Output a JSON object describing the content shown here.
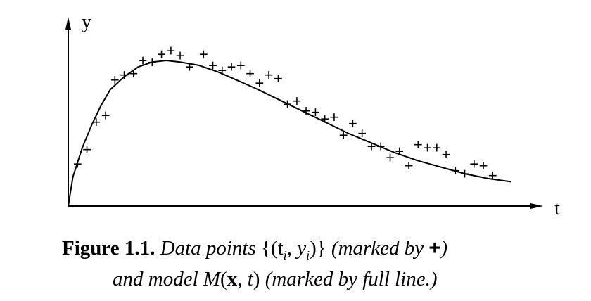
{
  "figure": {
    "y_axis_label": "y",
    "x_axis_label": "t",
    "marker_symbol": "+",
    "caption": {
      "label": "Figure 1.1.",
      "text_a": "Data points",
      "math_a": "{(t",
      "sub_i1": "i",
      "math_b": ", y",
      "sub_i2": "i",
      "math_c": ")}",
      "text_b": "(marked by",
      "plus": "+",
      "close_paren": ")",
      "text_c": "and model",
      "model_M": "M",
      "paren_open": "(",
      "model_x": "x",
      "comma_t": ", t",
      "paren_close": ")",
      "text_d": "(marked by full line.)"
    }
  },
  "chart_data": {
    "type": "scatter",
    "series": [
      {
        "values": [
          [
            0.02,
            0.26
          ],
          [
            0.04,
            0.35
          ],
          [
            0.06,
            0.52
          ],
          [
            0.08,
            0.56
          ],
          [
            0.1,
            0.78
          ],
          [
            0.12,
            0.81
          ],
          [
            0.14,
            0.82
          ],
          [
            0.16,
            0.9
          ],
          [
            0.18,
            0.89
          ],
          [
            0.2,
            0.94
          ],
          [
            0.22,
            0.96
          ],
          [
            0.24,
            0.93
          ],
          [
            0.26,
            0.86
          ],
          [
            0.29,
            0.94
          ],
          [
            0.31,
            0.87
          ],
          [
            0.33,
            0.84
          ],
          [
            0.35,
            0.86
          ],
          [
            0.37,
            0.87
          ],
          [
            0.39,
            0.82
          ],
          [
            0.41,
            0.76
          ],
          [
            0.43,
            0.81
          ],
          [
            0.45,
            0.79
          ],
          [
            0.47,
            0.63
          ],
          [
            0.49,
            0.65
          ],
          [
            0.51,
            0.59
          ],
          [
            0.53,
            0.58
          ],
          [
            0.55,
            0.54
          ],
          [
            0.57,
            0.55
          ],
          [
            0.59,
            0.44
          ],
          [
            0.61,
            0.51
          ],
          [
            0.63,
            0.45
          ],
          [
            0.65,
            0.37
          ],
          [
            0.67,
            0.37
          ],
          [
            0.69,
            0.3
          ],
          [
            0.71,
            0.34
          ],
          [
            0.73,
            0.25
          ],
          [
            0.75,
            0.38
          ],
          [
            0.77,
            0.36
          ],
          [
            0.79,
            0.36
          ],
          [
            0.81,
            0.32
          ],
          [
            0.83,
            0.22
          ],
          [
            0.85,
            0.2
          ],
          [
            0.87,
            0.26
          ],
          [
            0.89,
            0.25
          ],
          [
            0.91,
            0.19
          ]
        ]
      },
      {
        "values": [
          [
            0.0,
            0.0
          ],
          [
            0.01,
            0.18
          ],
          [
            0.03,
            0.36
          ],
          [
            0.05,
            0.5
          ],
          [
            0.07,
            0.62
          ],
          [
            0.09,
            0.72
          ],
          [
            0.12,
            0.8
          ],
          [
            0.15,
            0.86
          ],
          [
            0.18,
            0.89
          ],
          [
            0.21,
            0.9
          ],
          [
            0.24,
            0.89
          ],
          [
            0.28,
            0.87
          ],
          [
            0.32,
            0.83
          ],
          [
            0.36,
            0.78
          ],
          [
            0.4,
            0.73
          ],
          [
            0.45,
            0.66
          ],
          [
            0.5,
            0.59
          ],
          [
            0.55,
            0.52
          ],
          [
            0.6,
            0.45
          ],
          [
            0.65,
            0.39
          ],
          [
            0.7,
            0.33
          ],
          [
            0.75,
            0.28
          ],
          [
            0.8,
            0.24
          ],
          [
            0.85,
            0.2
          ],
          [
            0.9,
            0.17
          ],
          [
            0.95,
            0.15
          ]
        ]
      }
    ],
    "xlabel": "t",
    "ylabel": "y",
    "xlim": [
      0,
      1
    ],
    "ylim": [
      0,
      1
    ],
    "grid": false
  }
}
